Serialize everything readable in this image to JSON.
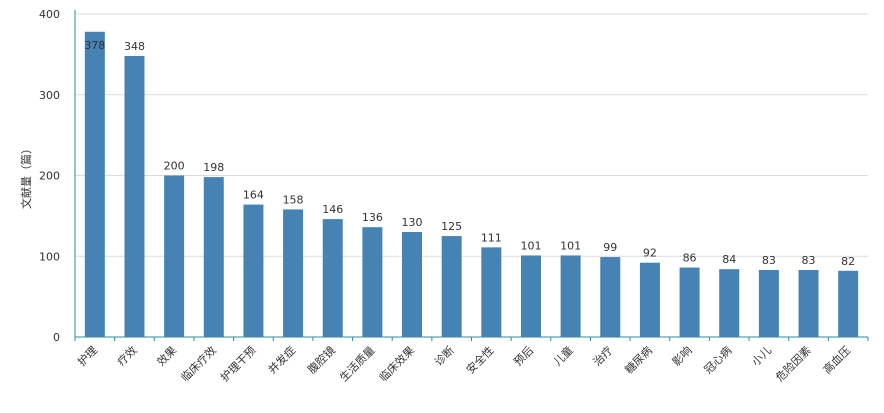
{
  "chart_data": {
    "type": "bar",
    "title": "",
    "xlabel": "",
    "ylabel": "文献量（篇）",
    "ylim": [
      0,
      400
    ],
    "yticks": [
      0,
      100,
      200,
      300,
      400
    ],
    "grid": true,
    "legend": "none",
    "bar_color": "#4682b4",
    "categories": [
      "护理",
      "疗效",
      "效果",
      "临床疗效",
      "护理干预",
      "并发症",
      "腹腔镜",
      "生活质量",
      "临床效果",
      "诊断",
      "安全性",
      "预后",
      "儿童",
      "治疗",
      "糖尿病",
      "影响",
      "冠心病",
      "小儿",
      "危险因素",
      "高血压"
    ],
    "values": [
      378,
      348,
      200,
      198,
      164,
      158,
      146,
      136,
      130,
      125,
      111,
      101,
      101,
      99,
      92,
      86,
      84,
      83,
      83,
      82
    ]
  }
}
